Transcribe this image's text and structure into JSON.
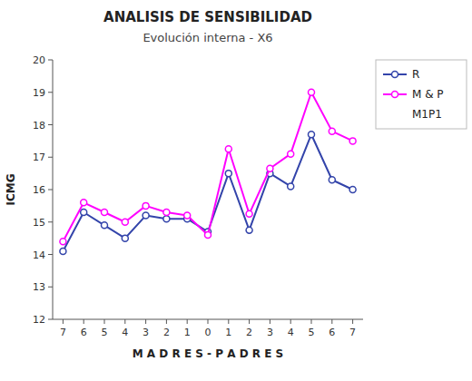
{
  "chart_data": {
    "type": "line",
    "title": "ANALISIS DE SENSIBILIDAD",
    "subtitle": "Evolución interna - X6",
    "x_label": "M A D R E S - P A D R E S",
    "y_label": "ICMG",
    "categories": [
      "7",
      "6",
      "5",
      "4",
      "3",
      "2",
      "1",
      "0",
      "1",
      "2",
      "3",
      "4",
      "5",
      "6",
      "7"
    ],
    "series": [
      {
        "name": "R",
        "color": "#3344aa",
        "marker": "circle",
        "values": [
          14.1,
          15.3,
          14.9,
          14.5,
          15.2,
          15.1,
          15.1,
          14.7,
          16.5,
          14.75,
          16.5,
          16.1,
          17.7,
          16.3,
          16.0
        ]
      },
      {
        "name": "M & P",
        "color": "#ff00ff",
        "marker": "circle",
        "values": [
          14.4,
          15.6,
          15.3,
          15.0,
          15.5,
          15.3,
          15.2,
          14.6,
          17.25,
          15.25,
          16.65,
          17.1,
          19.0,
          17.8,
          17.5
        ]
      }
    ],
    "annotations": [
      "M1P1"
    ],
    "ylim": [
      12,
      20
    ],
    "yticks": [
      12,
      13,
      14,
      15,
      16,
      17,
      18,
      19,
      20
    ],
    "grid": false,
    "legend": "right"
  }
}
